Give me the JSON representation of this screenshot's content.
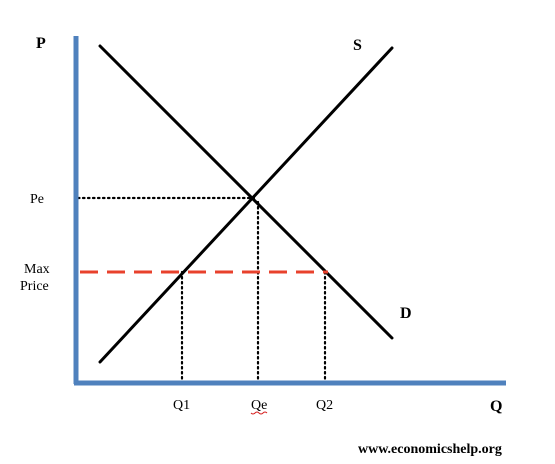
{
  "axes": {
    "y_label": "P",
    "x_label": "Q",
    "axis_color": "#4f81bd"
  },
  "curves": {
    "supply_label": "S",
    "demand_label": "D",
    "line_color": "#000000"
  },
  "price_labels": {
    "equilibrium": "Pe",
    "max_line1": "Max",
    "max_line2": "Price"
  },
  "quantity_labels": {
    "q1": "Q1",
    "qe": "Qe",
    "q2": "Q2"
  },
  "max_price_line": {
    "color": "#e8412c",
    "style": "dashed"
  },
  "guide_lines": {
    "style": "dotted",
    "color": "#000000"
  },
  "footer": {
    "website": "www.economicshelp.org"
  }
}
